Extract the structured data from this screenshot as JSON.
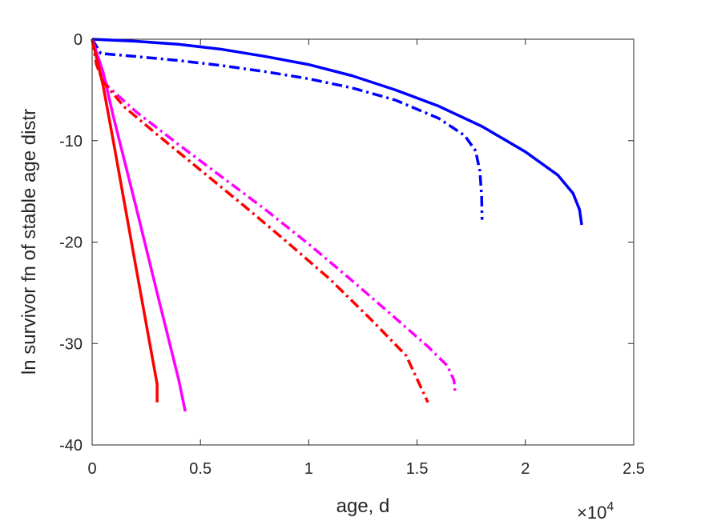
{
  "chart_data": {
    "type": "line",
    "title": "",
    "xlabel": "age, d",
    "ylabel": "ln survivor fn of stable age distr",
    "x_multiplier_label": "×10",
    "x_multiplier_exponent": "4",
    "xlim": [
      0,
      25000
    ],
    "ylim": [
      -40,
      0
    ],
    "x_ticks": [
      0,
      5000,
      10000,
      15000,
      20000,
      25000
    ],
    "x_tick_labels": [
      "0",
      "0.5",
      "1",
      "1.5",
      "2",
      "2.5"
    ],
    "y_ticks": [
      0,
      -10,
      -20,
      -30,
      -40
    ],
    "y_tick_labels": [
      "0",
      "-10",
      "-20",
      "-30",
      "-40"
    ],
    "grid": false,
    "legend": "none",
    "series": [
      {
        "color": "#0000FF",
        "dash": "solid",
        "points": [
          [
            0,
            0
          ],
          [
            2000,
            -0.2
          ],
          [
            4000,
            -0.5
          ],
          [
            6000,
            -1.0
          ],
          [
            8000,
            -1.7
          ],
          [
            10000,
            -2.5
          ],
          [
            12000,
            -3.6
          ],
          [
            14000,
            -5.0
          ],
          [
            16000,
            -6.6
          ],
          [
            18000,
            -8.6
          ],
          [
            20000,
            -11.1
          ],
          [
            21500,
            -13.4
          ],
          [
            22200,
            -15.2
          ],
          [
            22500,
            -16.8
          ],
          [
            22600,
            -18.3
          ]
        ]
      },
      {
        "color": "#0000FF",
        "dash": "dashdot",
        "points": [
          [
            0,
            0
          ],
          [
            400,
            -1.4
          ],
          [
            2000,
            -1.7
          ],
          [
            4000,
            -2.1
          ],
          [
            6000,
            -2.6
          ],
          [
            8000,
            -3.2
          ],
          [
            10000,
            -3.9
          ],
          [
            12000,
            -4.8
          ],
          [
            14000,
            -6.0
          ],
          [
            16000,
            -7.8
          ],
          [
            17200,
            -9.5
          ],
          [
            17700,
            -11.0
          ],
          [
            17900,
            -13.0
          ],
          [
            17980,
            -15.5
          ],
          [
            18000,
            -17.8
          ]
        ]
      },
      {
        "color": "#FF00FF",
        "dash": "solid",
        "points": [
          [
            0,
            0
          ],
          [
            500,
            -3.2
          ],
          [
            1000,
            -7.8
          ],
          [
            2000,
            -16.3
          ],
          [
            3000,
            -25.0
          ],
          [
            4000,
            -33.6
          ],
          [
            4300,
            -36.7
          ]
        ]
      },
      {
        "color": "#FF00FF",
        "dash": "dashdot",
        "points": [
          [
            0,
            0
          ],
          [
            300,
            -2.7
          ],
          [
            700,
            -4.6
          ],
          [
            2000,
            -7.1
          ],
          [
            4000,
            -10.4
          ],
          [
            6000,
            -13.6
          ],
          [
            8000,
            -16.8
          ],
          [
            10000,
            -20.2
          ],
          [
            12000,
            -23.8
          ],
          [
            14000,
            -27.5
          ],
          [
            15500,
            -30.3
          ],
          [
            16400,
            -32.2
          ],
          [
            16700,
            -33.6
          ],
          [
            16750,
            -34.7
          ]
        ]
      },
      {
        "color": "#FF0000",
        "dash": "solid",
        "points": [
          [
            0,
            0
          ],
          [
            500,
            -4.5
          ],
          [
            1000,
            -10.3
          ],
          [
            2000,
            -22.2
          ],
          [
            3000,
            -34.0
          ],
          [
            3000,
            -35.8
          ]
        ]
      },
      {
        "color": "#FF0000",
        "dash": "dashdot",
        "points": [
          [
            0,
            0
          ],
          [
            200,
            -2.5
          ],
          [
            500,
            -4.2
          ],
          [
            1500,
            -6.7
          ],
          [
            3000,
            -9.4
          ],
          [
            5000,
            -12.9
          ],
          [
            7000,
            -16.4
          ],
          [
            9000,
            -20.0
          ],
          [
            11000,
            -23.7
          ],
          [
            13000,
            -27.9
          ],
          [
            14500,
            -31.2
          ],
          [
            15500,
            -35.8
          ]
        ]
      }
    ]
  }
}
